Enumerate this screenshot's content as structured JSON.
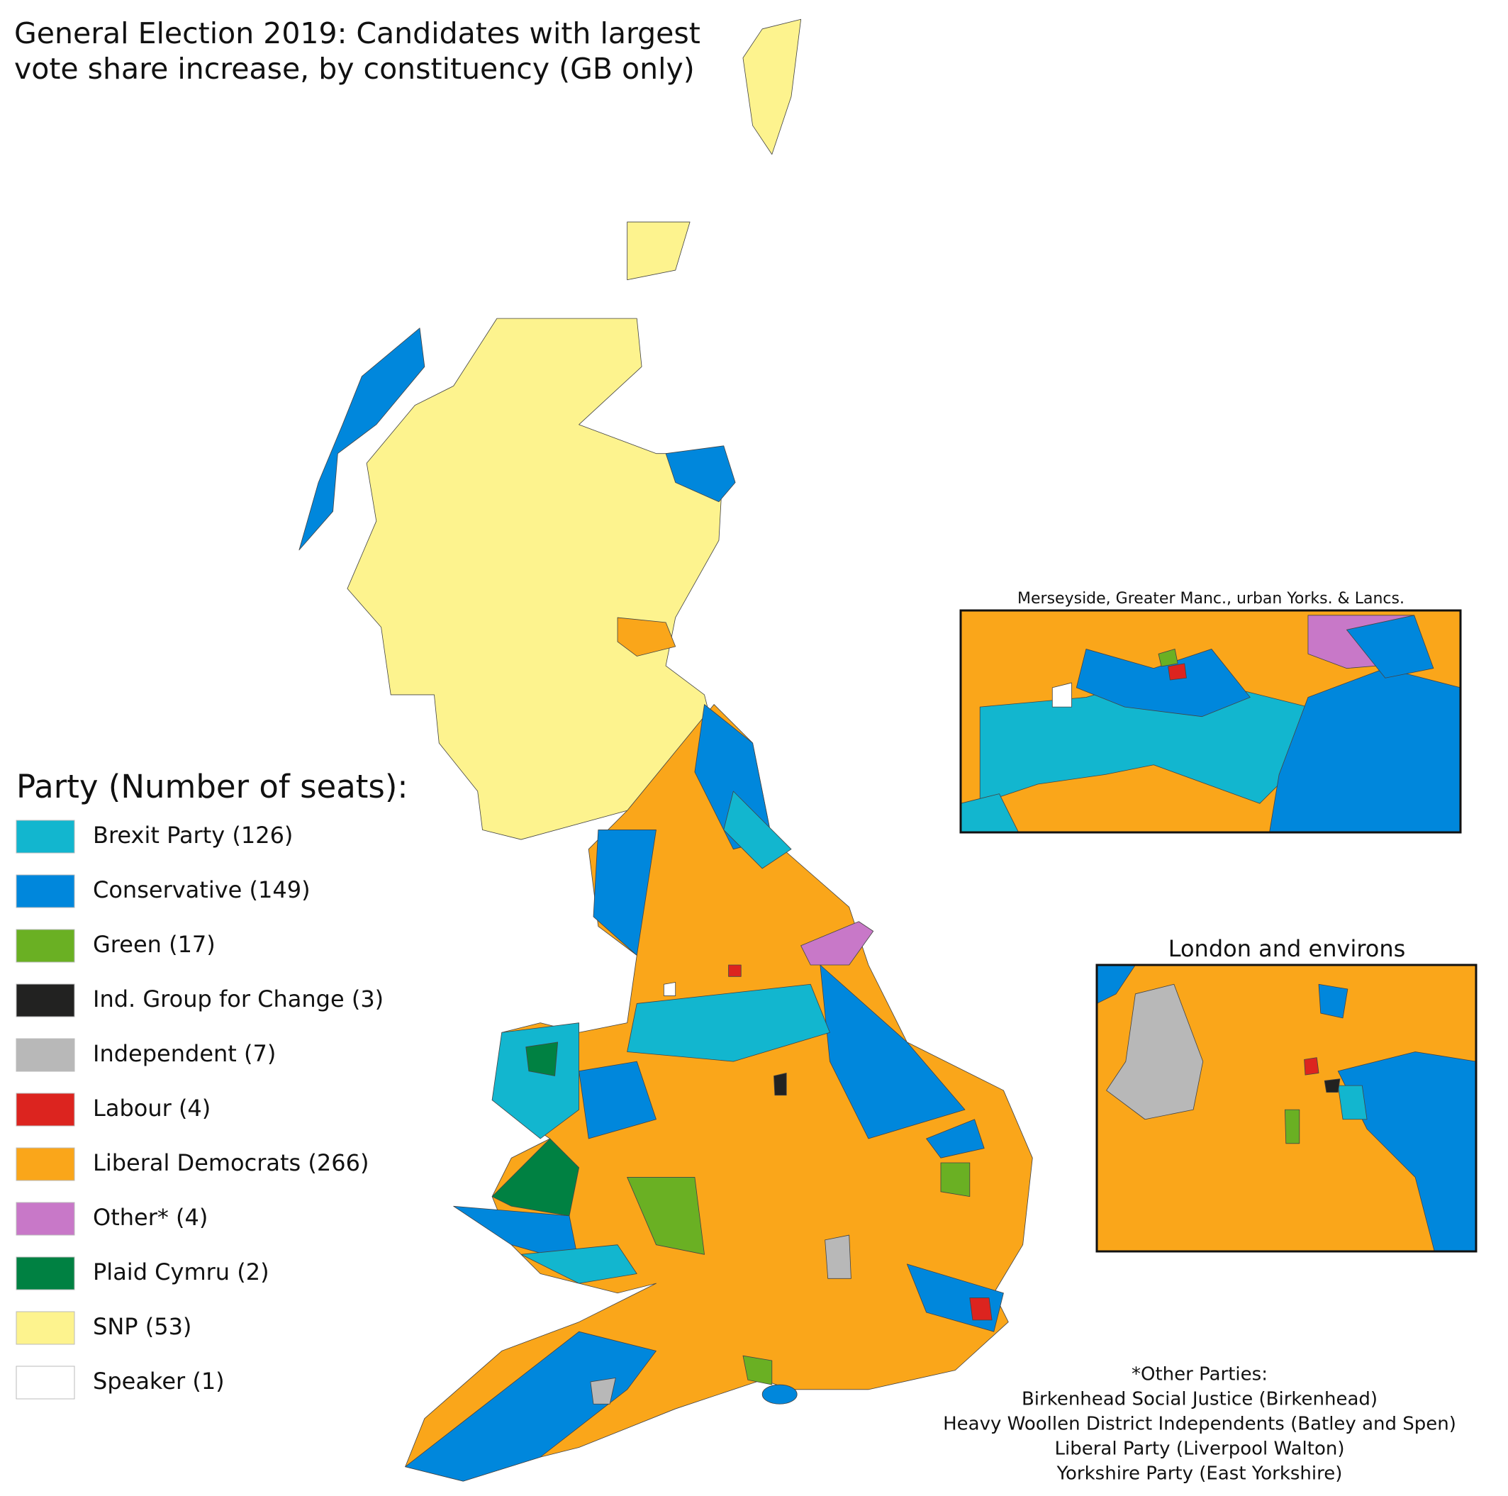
{
  "title_lines": [
    "General Election 2019: Candidates with largest",
    "vote share increase, by constituency (GB only)"
  ],
  "legend": {
    "title": "Party (Number of seats):",
    "items": [
      {
        "label": "Brexit Party (126)",
        "color": "#12b6cf"
      },
      {
        "label": "Conservative (149)",
        "color": "#0087dc"
      },
      {
        "label": "Green (17)",
        "color": "#6ab023"
      },
      {
        "label": "Ind. Group for Change (3)",
        "color": "#222221"
      },
      {
        "label": "Independent (7)",
        "color": "#b8b8b8"
      },
      {
        "label": "Labour (4)",
        "color": "#dc241f"
      },
      {
        "label": "Liberal Democrats (266)",
        "color": "#faa61a"
      },
      {
        "label": "Other* (4)",
        "color": "#c878c8"
      },
      {
        "label": "Plaid Cymru (2)",
        "color": "#008142"
      },
      {
        "label": "SNP (53)",
        "color": "#fdf38e"
      },
      {
        "label": "Speaker (1)",
        "color": "#ffffff"
      }
    ]
  },
  "insets": [
    {
      "title": "Merseyside, Greater Manc., urban Yorks. & Lancs."
    },
    {
      "title": "London and environs"
    }
  ],
  "footnote": {
    "lines": [
      "*Other Parties:",
      "Birkenhead Social Justice (Birkenhead)",
      "Heavy Woollen District Independents (Batley and Spen)",
      "Liberal Party (Liverpool Walton)",
      "Yorkshire Party (East Yorkshire)"
    ]
  }
}
